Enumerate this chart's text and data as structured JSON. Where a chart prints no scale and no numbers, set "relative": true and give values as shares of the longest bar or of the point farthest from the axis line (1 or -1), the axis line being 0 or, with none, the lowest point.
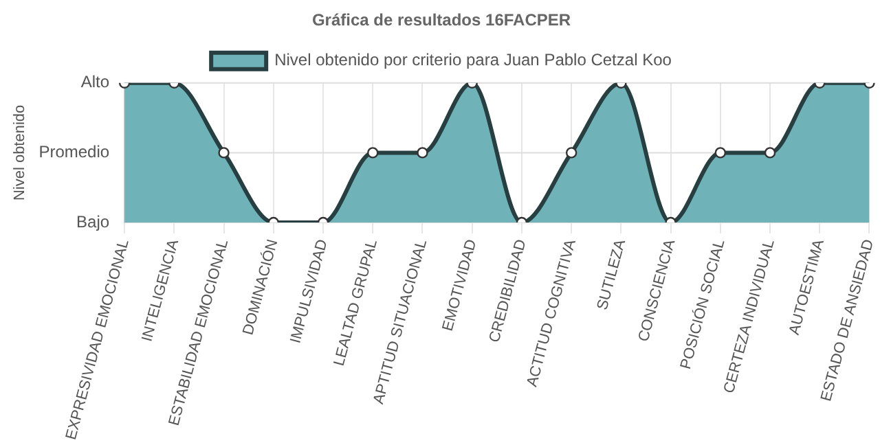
{
  "chart_data": {
    "type": "area",
    "title": "Gráfica de resultados 16FACPER",
    "ylabel": "Nivel obtenido",
    "categories": [
      "EXPRESIVIDAD EMOCIONAL",
      "INTELIGENCIA",
      "ESTABILIDAD EMOCIONAL",
      "DOMINACIÓN",
      "IMPULSIVIDAD",
      "LEALTAD GRUPAL",
      "APTITUD SITUACIONAL",
      "EMOTIVIDAD",
      "CREDIBILIDAD",
      "ACTITUD COGNITIVA",
      "SUTILEZA",
      "CONSCIENCIA",
      "POSICIÓN SOCIAL",
      "CERTEZA INDIVIDUAL",
      "AUTOESTIMA",
      "ESTADO DE ANSIEDAD"
    ],
    "series": [
      {
        "name": "Nivel obtenido por criterio para Juan Pablo Cetzal Koo",
        "color": "#6fb3b8",
        "values": [
          1,
          1,
          0.5,
          0,
          0,
          0.5,
          0.5,
          1,
          0,
          0.5,
          1,
          0,
          0.5,
          0.5,
          1,
          1
        ]
      }
    ],
    "relative": true,
    "ref_lines": [
      {
        "axis": "y",
        "value": 0,
        "label": "Bajo",
        "color": "#dddddd"
      },
      {
        "axis": "y",
        "value": 0.5,
        "label": "Promedio",
        "color": "#dddddd"
      },
      {
        "axis": "y",
        "value": 1,
        "label": "Alto",
        "color": "#dddddd"
      }
    ],
    "grid": "x",
    "legend": "top",
    "marker": "circle"
  }
}
